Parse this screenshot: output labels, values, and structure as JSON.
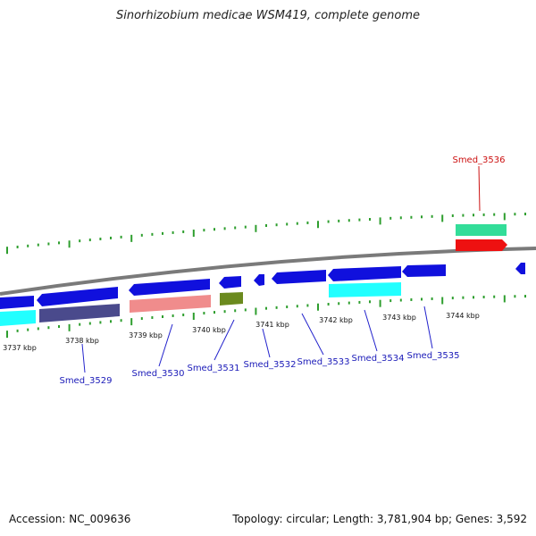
{
  "title": "Sinorhizobium medicae WSM419, complete genome",
  "footer": {
    "accession": "Accession: NC_009636",
    "summary": "Topology: circular; Length: 3,781,904 bp; Genes: 3,592"
  },
  "colors": {
    "backbone": "#7a7a7a",
    "tick": "#2e9e2e",
    "label_blue": "#1a1ab8",
    "label_red": "#cc1111",
    "leader": "#2222cc"
  },
  "scale_labels": [
    "3737 kbp",
    "3738 kbp",
    "3739 kbp",
    "3740 kbp",
    "3741 kbp",
    "3742 kbp",
    "3743 kbp",
    "3744 kbp"
  ],
  "gene_labels": [
    "Smed_3529",
    "Smed_3530",
    "Smed_3531",
    "Smed_3532",
    "Smed_3533",
    "Smed_3534",
    "Smed_3535",
    "Smed_3536"
  ],
  "features": [
    {
      "strand": "reverse-cds",
      "color": "#1010dd"
    },
    {
      "strand": "reverse-cds",
      "color": "#1010dd"
    },
    {
      "strand": "reverse-cds",
      "color": "#1010dd"
    },
    {
      "strand": "reverse-cds",
      "color": "#1010dd"
    },
    {
      "strand": "reverse-cds",
      "color": "#1010dd"
    },
    {
      "strand": "reverse-cds",
      "color": "#1010dd"
    },
    {
      "strand": "reverse-cds",
      "color": "#1010dd"
    },
    {
      "strand": "reverse-cds",
      "color": "#1010dd"
    },
    {
      "strand": "forward-cds",
      "color": "#ee1111"
    },
    {
      "strand": "forward-gene",
      "color": "#33dd99"
    },
    {
      "strand": "reverse-gene",
      "color": "#22ffff"
    },
    {
      "strand": "reverse-gene",
      "color": "#4a4a8c"
    },
    {
      "strand": "reverse-gene",
      "color": "#f08c8c"
    },
    {
      "strand": "reverse-gene",
      "color": "#6b8a1e"
    },
    {
      "strand": "reverse-gene",
      "color": "#22ffff"
    }
  ]
}
